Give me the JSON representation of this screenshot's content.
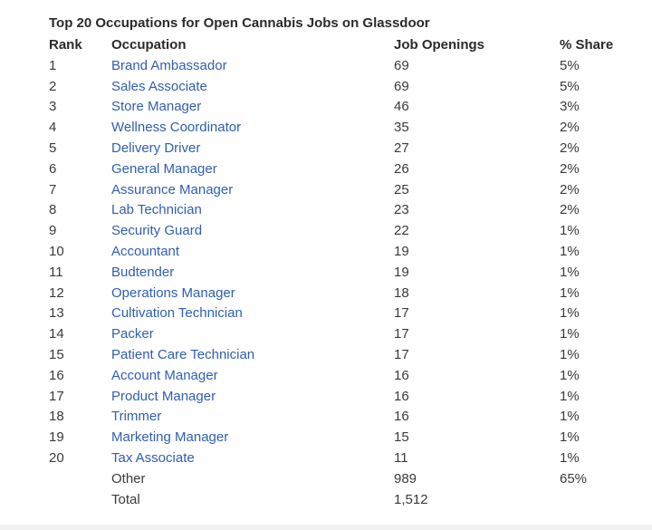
{
  "table": {
    "title": "Top 20 Occupations for Open Cannabis Jobs on Glassdoor",
    "headers": {
      "rank": "Rank",
      "occupation": "Occupation",
      "job_openings": "Job Openings",
      "share": "% Share"
    },
    "link_color": "#2f5fb0",
    "rows": [
      {
        "rank": "1",
        "occupation": "Brand Ambassador",
        "job_openings": "69",
        "share": "5%"
      },
      {
        "rank": "2",
        "occupation": "Sales Associate",
        "job_openings": "69",
        "share": "5%"
      },
      {
        "rank": "3",
        "occupation": "Store Manager",
        "job_openings": "46",
        "share": "3%"
      },
      {
        "rank": "4",
        "occupation": "Wellness Coordinator",
        "job_openings": "35",
        "share": "2%"
      },
      {
        "rank": "5",
        "occupation": "Delivery Driver",
        "job_openings": "27",
        "share": "2%"
      },
      {
        "rank": "6",
        "occupation": "General Manager",
        "job_openings": "26",
        "share": "2%"
      },
      {
        "rank": "7",
        "occupation": "Assurance Manager",
        "job_openings": "25",
        "share": "2%"
      },
      {
        "rank": "8",
        "occupation": "Lab Technician",
        "job_openings": "23",
        "share": "2%"
      },
      {
        "rank": "9",
        "occupation": "Security Guard",
        "job_openings": "22",
        "share": "1%"
      },
      {
        "rank": "10",
        "occupation": "Accountant",
        "job_openings": "19",
        "share": "1%"
      },
      {
        "rank": "11",
        "occupation": "Budtender",
        "job_openings": "19",
        "share": "1%"
      },
      {
        "rank": "12",
        "occupation": "Operations Manager",
        "job_openings": "18",
        "share": "1%"
      },
      {
        "rank": "13",
        "occupation": "Cultivation Technician",
        "job_openings": "17",
        "share": "1%"
      },
      {
        "rank": "14",
        "occupation": "Packer",
        "job_openings": "17",
        "share": "1%"
      },
      {
        "rank": "15",
        "occupation": "Patient Care Technician",
        "job_openings": "17",
        "share": "1%"
      },
      {
        "rank": "16",
        "occupation": "Account Manager",
        "job_openings": "16",
        "share": "1%"
      },
      {
        "rank": "17",
        "occupation": "Product Manager",
        "job_openings": "16",
        "share": "1%"
      },
      {
        "rank": "18",
        "occupation": "Trimmer",
        "job_openings": "16",
        "share": "1%"
      },
      {
        "rank": "19",
        "occupation": "Marketing Manager",
        "job_openings": "15",
        "share": "1%"
      },
      {
        "rank": "20",
        "occupation": "Tax Associate",
        "job_openings": "11",
        "share": "1%"
      }
    ],
    "other": {
      "occupation": "Other",
      "job_openings": "989",
      "share": "65%"
    },
    "total": {
      "occupation": "Total",
      "job_openings": "1,512",
      "share": ""
    }
  }
}
